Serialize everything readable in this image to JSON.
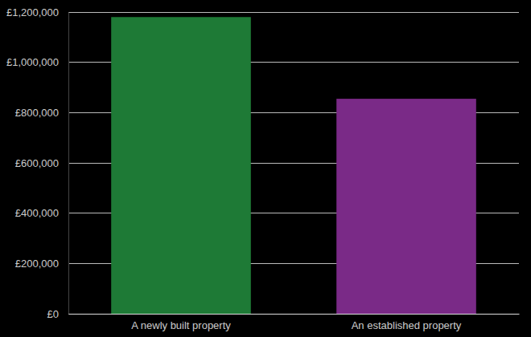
{
  "chart_data": {
    "type": "bar",
    "categories": [
      "A newly built property",
      "An established property"
    ],
    "values": [
      1180000,
      855000
    ],
    "colors": [
      "#1e7a36",
      "#7a2a87"
    ],
    "ylim": [
      0,
      1200000
    ],
    "yticks": [
      {
        "value": 0,
        "label": "£0"
      },
      {
        "value": 200000,
        "label": "£200,000"
      },
      {
        "value": 400000,
        "label": "£400,000"
      },
      {
        "value": 600000,
        "label": "£600,000"
      },
      {
        "value": 800000,
        "label": "£800,000"
      },
      {
        "value": 1000000,
        "label": "£1,000,000"
      },
      {
        "value": 1200000,
        "label": "£1,200,000"
      }
    ],
    "grid": true
  }
}
